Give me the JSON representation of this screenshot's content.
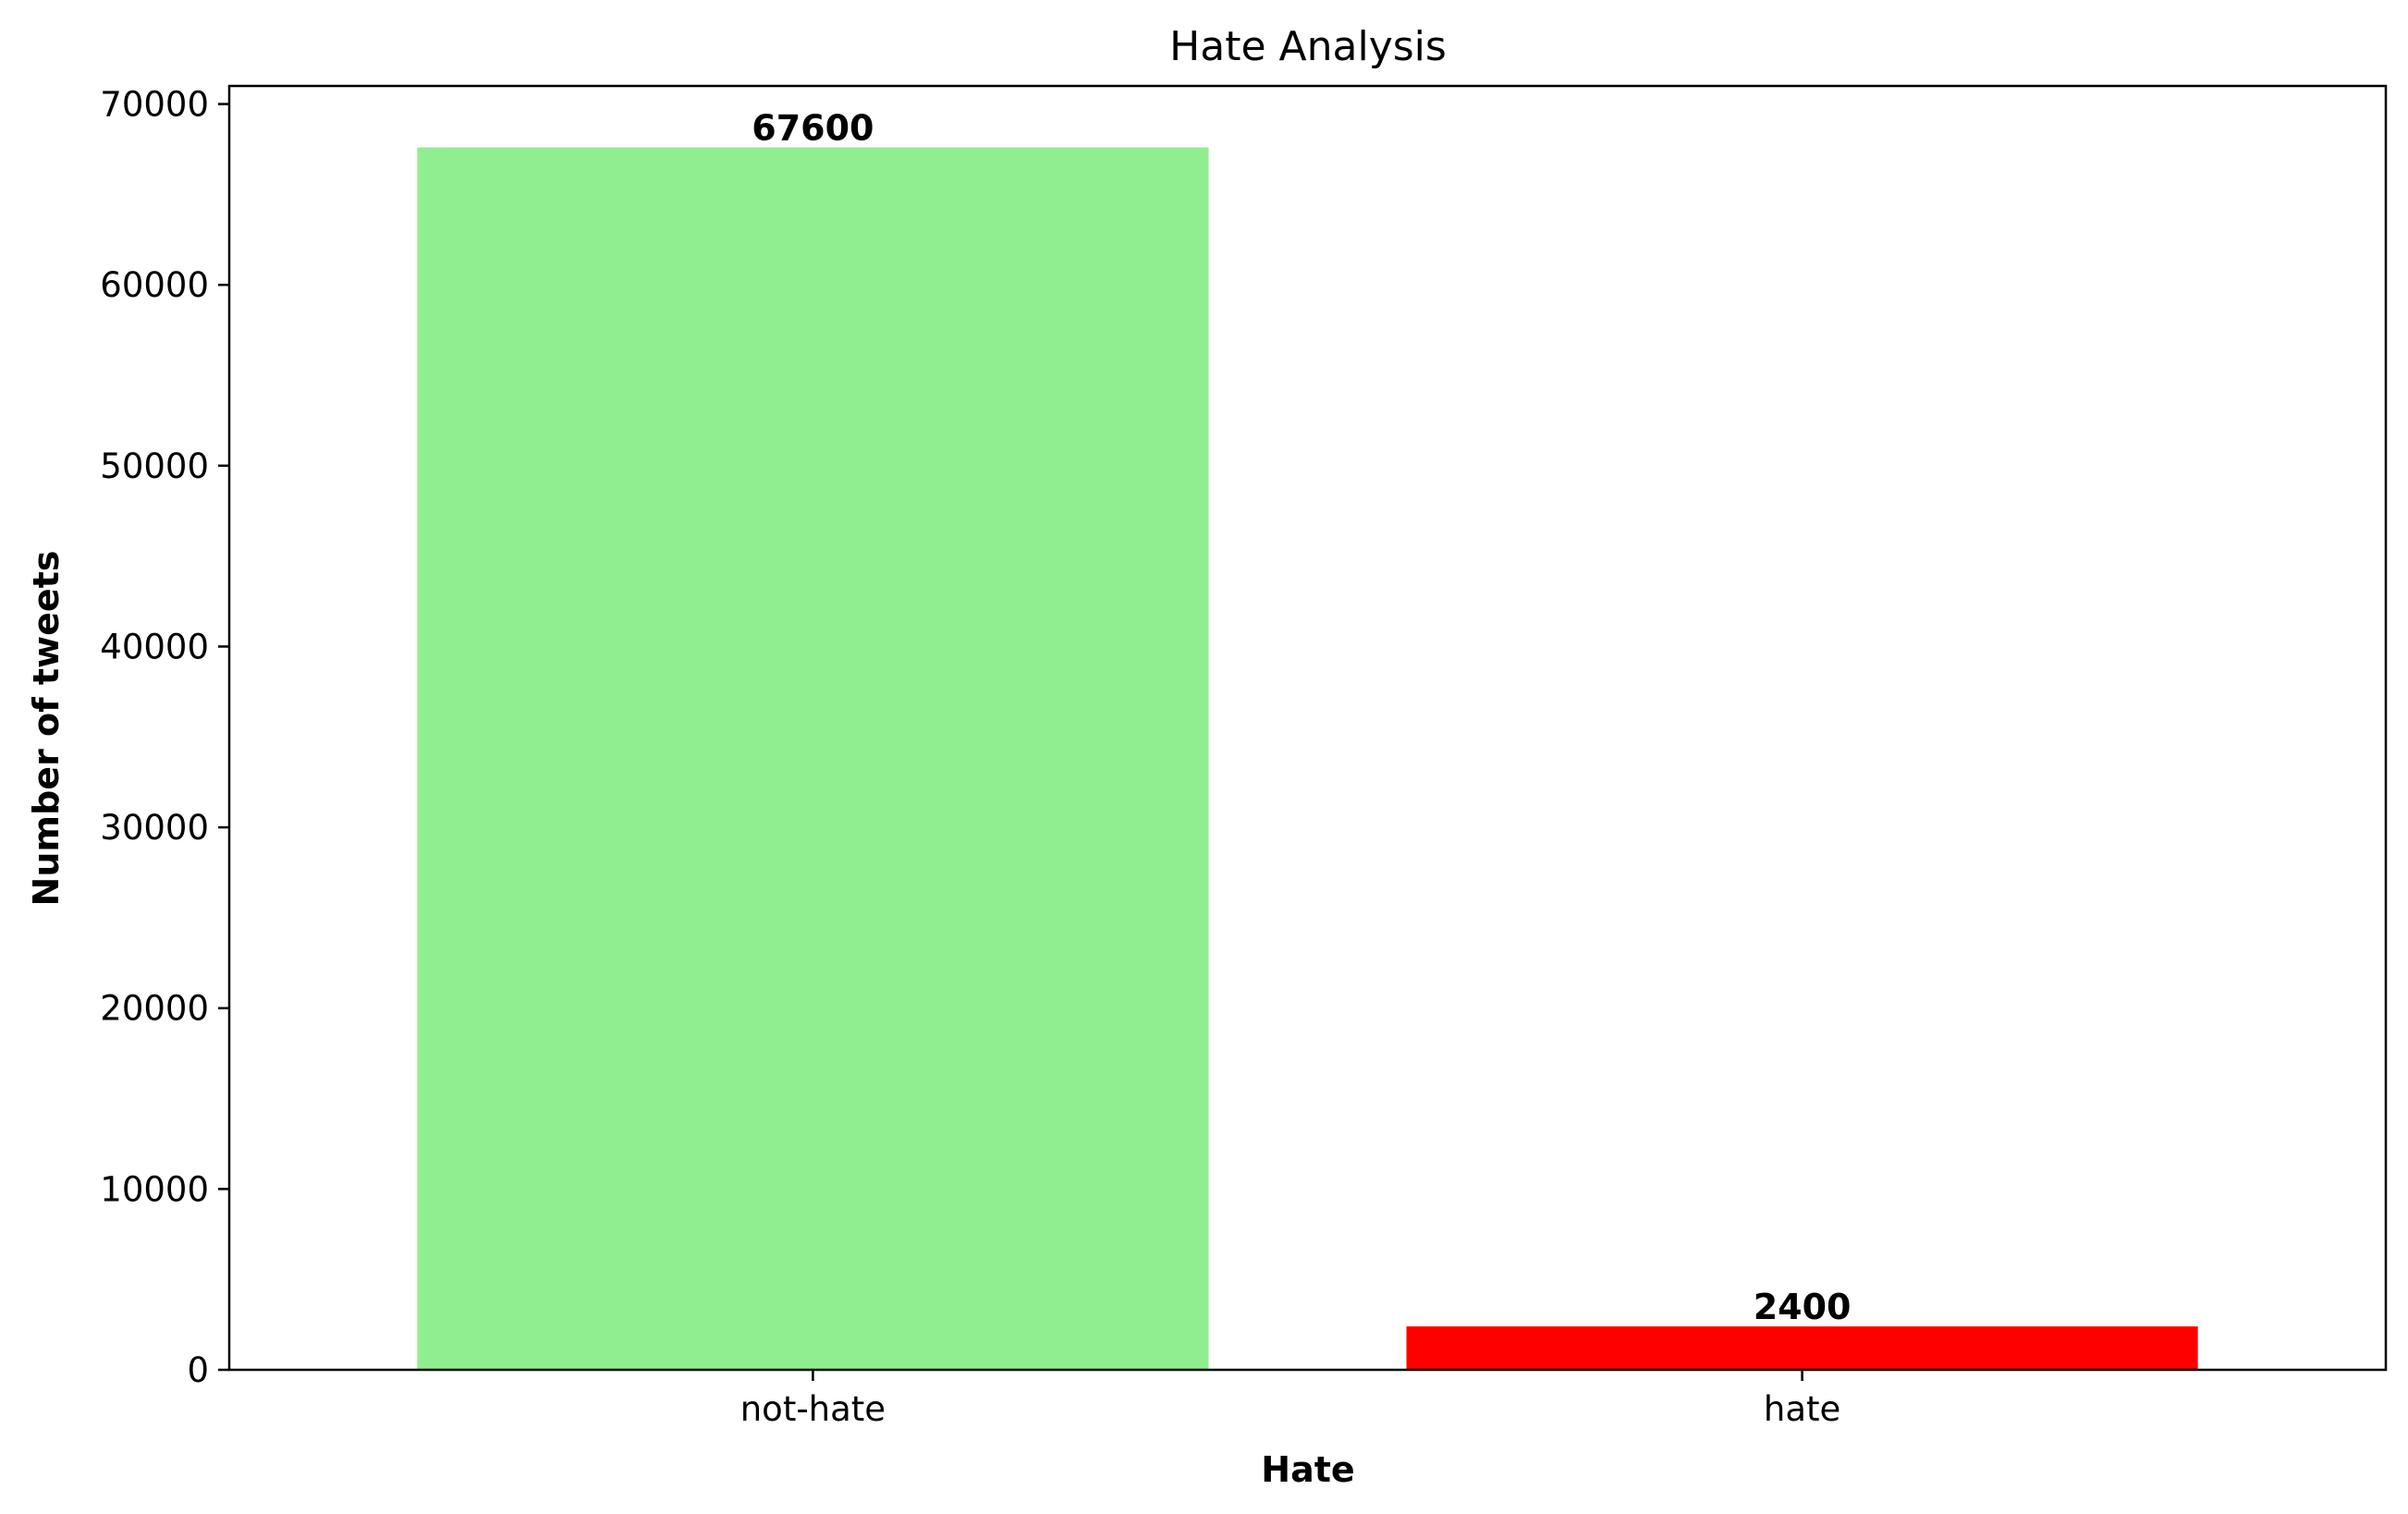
{
  "chart_data": {
    "type": "bar",
    "title": "Hate Analysis",
    "xlabel": "Hate",
    "ylabel": "Number of tweets",
    "categories": [
      "not-hate",
      "hate"
    ],
    "values": [
      67600,
      2400
    ],
    "data_labels": [
      "67600",
      "2400"
    ],
    "colors": [
      "#90ee90",
      "#ff0000"
    ],
    "ylim": [
      0,
      71000
    ],
    "yticks": [
      0,
      10000,
      20000,
      30000,
      40000,
      50000,
      60000,
      70000
    ],
    "ytick_labels": [
      "0",
      "10000",
      "20000",
      "30000",
      "40000",
      "50000",
      "60000",
      "70000"
    ],
    "grid": false,
    "legend": "none"
  }
}
